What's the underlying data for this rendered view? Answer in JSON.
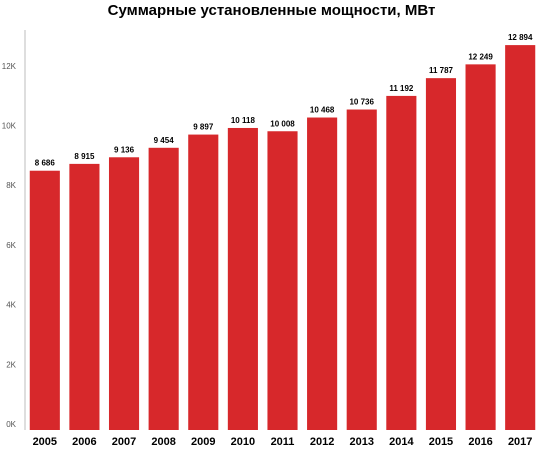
{
  "chart_data": {
    "type": "bar",
    "title": "Суммарные установленные мощности, МВт",
    "xlabel": "",
    "ylabel": "",
    "categories": [
      "2005",
      "2006",
      "2007",
      "2008",
      "2009",
      "2010",
      "2011",
      "2012",
      "2013",
      "2014",
      "2015",
      "2016",
      "2017"
    ],
    "values": [
      8686,
      8915,
      9136,
      9454,
      9897,
      10118,
      10008,
      10468,
      10736,
      11192,
      11787,
      12249,
      12894
    ],
    "data_labels": [
      "8 686",
      "8 915",
      "9 136",
      "9 454",
      "9 897",
      "10 118",
      "10 008",
      "10 468",
      "10 736",
      "11 192",
      "11 787",
      "12 249",
      "12 894"
    ],
    "yticks": [
      0,
      2000,
      4000,
      6000,
      8000,
      10000,
      12000
    ],
    "ytick_labels": [
      "0K",
      "2K",
      "4K",
      "6K",
      "8K",
      "10K",
      "12K"
    ],
    "ylim": [
      0,
      13400
    ],
    "grid": false,
    "legend": "none",
    "bar_color": "#d7282b"
  }
}
